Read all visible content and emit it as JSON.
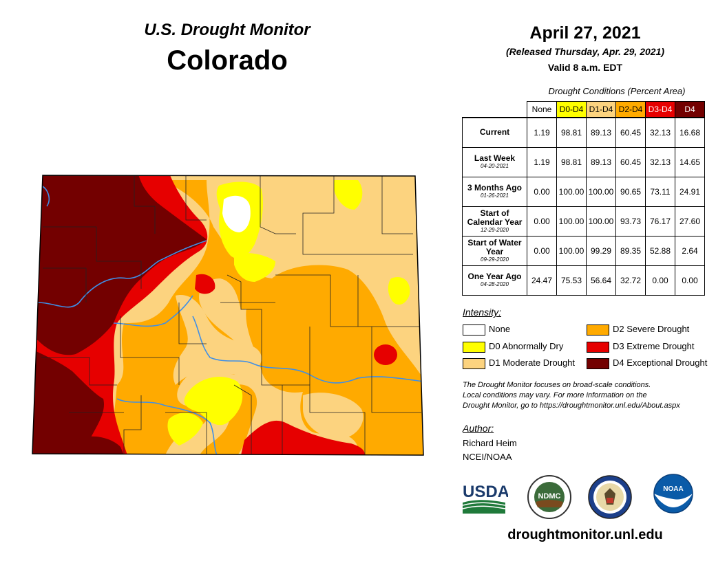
{
  "header": {
    "subtitle": "U.S. Drought Monitor",
    "state": "Colorado",
    "date": "April 27, 2021",
    "released": "(Released Thursday, Apr. 29, 2021)",
    "valid": "Valid 8 a.m. EDT"
  },
  "table": {
    "caption": "Drought Conditions (Percent Area)",
    "columns": [
      {
        "label": "None",
        "bg": "#ffffff",
        "fg": "#000000"
      },
      {
        "label": "D0-D4",
        "bg": "#ffff00",
        "fg": "#000000"
      },
      {
        "label": "D1-D4",
        "bg": "#fcd37f",
        "fg": "#000000"
      },
      {
        "label": "D2-D4",
        "bg": "#ffaa00",
        "fg": "#000000"
      },
      {
        "label": "D3-D4",
        "bg": "#e60000",
        "fg": "#ffffff"
      },
      {
        "label": "D4",
        "bg": "#730000",
        "fg": "#ffffff"
      }
    ],
    "rows": [
      {
        "label": "Current",
        "date": "",
        "values": [
          "1.19",
          "98.81",
          "89.13",
          "60.45",
          "32.13",
          "16.68"
        ]
      },
      {
        "label": "Last Week",
        "date": "04-20-2021",
        "values": [
          "1.19",
          "98.81",
          "89.13",
          "60.45",
          "32.13",
          "14.65"
        ]
      },
      {
        "label": "3 Months Ago",
        "date": "01-26-2021",
        "values": [
          "0.00",
          "100.00",
          "100.00",
          "90.65",
          "73.11",
          "24.91"
        ]
      },
      {
        "label": "Start of Calendar Year",
        "date": "12-29-2020",
        "values": [
          "0.00",
          "100.00",
          "100.00",
          "93.73",
          "76.17",
          "27.60"
        ]
      },
      {
        "label": "Start of Water Year",
        "date": "09-29-2020",
        "values": [
          "0.00",
          "100.00",
          "99.29",
          "89.35",
          "52.88",
          "2.64"
        ]
      },
      {
        "label": "One Year Ago",
        "date": "04-28-2020",
        "values": [
          "24.47",
          "75.53",
          "56.64",
          "32.72",
          "0.00",
          "0.00"
        ]
      }
    ]
  },
  "legend": {
    "title": "Intensity:",
    "items": [
      {
        "label": "None",
        "color": "#ffffff"
      },
      {
        "label": "D0 Abnormally Dry",
        "color": "#ffff00"
      },
      {
        "label": "D1 Moderate Drought",
        "color": "#fcd37f"
      },
      {
        "label": "D2 Severe Drought",
        "color": "#ffaa00"
      },
      {
        "label": "D3 Extreme Drought",
        "color": "#e60000"
      },
      {
        "label": "D4 Exceptional Drought",
        "color": "#730000"
      }
    ]
  },
  "note": {
    "line1": "The Drought Monitor focuses on broad-scale conditions.",
    "line2": "Local conditions may vary. For more information on the",
    "line3": "Drought Monitor, go to https://droughtmonitor.unl.edu/About.aspx"
  },
  "author": {
    "title": "Author:",
    "name": "Richard Heim",
    "org": "NCEI/NOAA"
  },
  "logos": {
    "usda": "USDA",
    "ndmc": "NDMC",
    "noaa": "NOAA"
  },
  "website": "droughtmonitor.unl.edu",
  "colors": {
    "none": "#ffffff",
    "d0": "#ffff00",
    "d1": "#fcd37f",
    "d2": "#ffaa00",
    "d3": "#e60000",
    "d4": "#730000",
    "river": "#3f8fe6"
  }
}
